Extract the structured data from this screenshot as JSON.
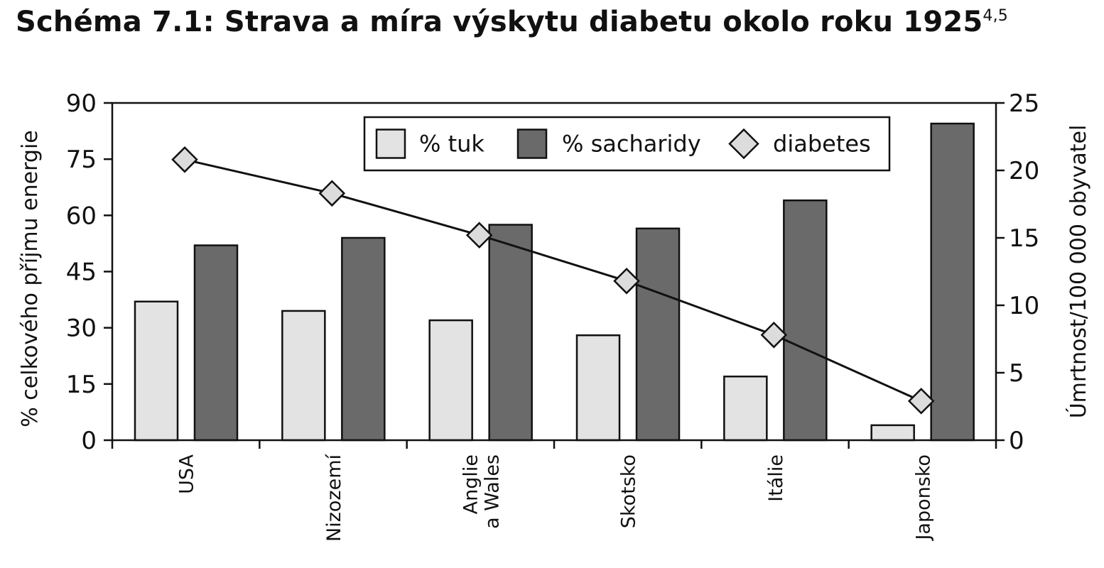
{
  "title": "Schéma 7.1: Strava a míra výskytu diabetu okolo roku 1925",
  "title_superscript": "4,5",
  "chart_data": {
    "type": "bar",
    "categories": [
      [
        "USA"
      ],
      [
        "Nizozemí"
      ],
      [
        "Anglie",
        "a Wales"
      ],
      [
        "Skotsko"
      ],
      [
        "Itálie"
      ],
      [
        "Japonsko"
      ]
    ],
    "series": [
      {
        "name": "% tuk",
        "type": "bar",
        "axis": "left",
        "color": "#e3e3e3",
        "values": [
          37,
          34.5,
          32,
          28,
          17,
          4
        ]
      },
      {
        "name": "% sacharidy",
        "type": "bar",
        "axis": "left",
        "color": "#6a6a6a",
        "values": [
          52,
          54,
          57.5,
          56.5,
          64,
          84.5
        ]
      },
      {
        "name": "diabetes",
        "type": "line",
        "axis": "right",
        "marker": "diamond",
        "color": "#111111",
        "values": [
          20.8,
          18.3,
          15.2,
          11.8,
          7.8,
          2.9
        ]
      }
    ],
    "ylabel": "% celkového příjmu energie",
    "ylim": [
      0,
      90
    ],
    "yticks": [
      0,
      15,
      30,
      45,
      60,
      75,
      90
    ],
    "y2label": "Úmrtnost/100 000 obyvatel",
    "y2lim": [
      0,
      25
    ],
    "y2ticks": [
      0,
      5,
      10,
      15,
      20,
      25
    ],
    "legend_position": "top-right",
    "grid": false
  }
}
